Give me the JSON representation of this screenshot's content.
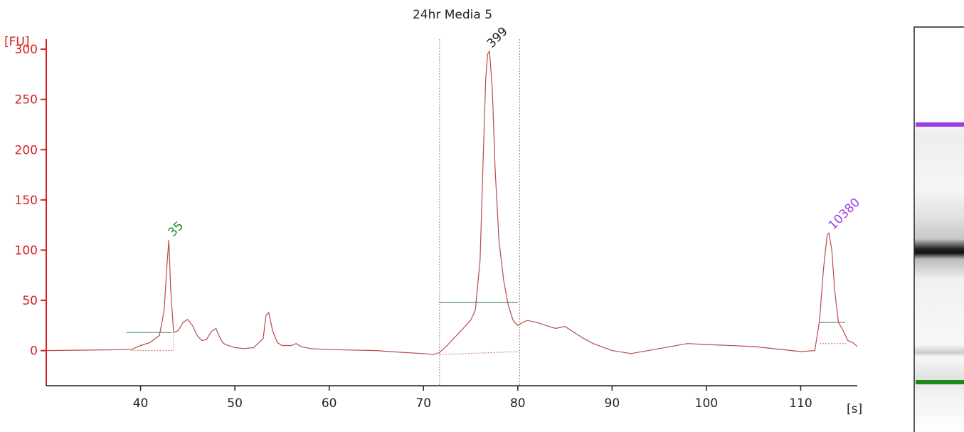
{
  "chart_data": {
    "type": "line",
    "title": "24hr Media 5",
    "xlabel": "[s]",
    "ylabel": "[FU]",
    "xlim": [
      30,
      116
    ],
    "ylim": [
      -35,
      310
    ],
    "x_ticks": [
      40,
      50,
      60,
      70,
      80,
      90,
      100,
      110
    ],
    "y_ticks": [
      0,
      50,
      100,
      150,
      200,
      250,
      300
    ],
    "grid": false,
    "series": [
      {
        "x": [
          30,
          39,
          40,
          41,
          42,
          42.5,
          42.8,
          43.0,
          43.2,
          43.5,
          44,
          44.5,
          45,
          45.5,
          46,
          46.5,
          47,
          47.5,
          48,
          48.3,
          48.7,
          49,
          50,
          51,
          52,
          53,
          53.3,
          53.6,
          54,
          54.5,
          55,
          56,
          56.5,
          57,
          58,
          60,
          65,
          68,
          70,
          71,
          71.7,
          72.5,
          73,
          74,
          75,
          75.5,
          76,
          76.3,
          76.6,
          76.8,
          77,
          77.3,
          77.6,
          78,
          78.5,
          79,
          79.5,
          80,
          80.5,
          81,
          82,
          83,
          84,
          85,
          86,
          87,
          88,
          90,
          92,
          95,
          98,
          100,
          105,
          110,
          111.5,
          112,
          112.4,
          112.8,
          113,
          113.3,
          113.6,
          114,
          114.5,
          115,
          115.5,
          116
        ],
        "y": [
          0,
          1,
          5,
          8,
          15,
          40,
          85,
          110,
          60,
          18,
          20,
          28,
          31,
          25,
          15,
          10,
          11,
          19,
          22,
          15,
          8,
          6,
          3,
          2,
          3,
          12,
          35,
          38,
          20,
          8,
          5,
          5,
          7,
          4,
          2,
          1,
          0,
          -2,
          -3,
          -4,
          -2,
          5,
          10,
          20,
          30,
          40,
          90,
          180,
          270,
          295,
          298,
          260,
          180,
          110,
          70,
          45,
          30,
          25,
          28,
          30,
          28,
          25,
          22,
          24,
          18,
          12,
          7,
          0,
          -3,
          2,
          7,
          6,
          4,
          -1,
          0,
          30,
          80,
          115,
          117,
          100,
          60,
          28,
          20,
          10,
          8,
          4
        ]
      }
    ],
    "peaks": [
      {
        "label": "35",
        "x": 43.0,
        "y": 110,
        "color": "#1e8a1e"
      },
      {
        "label": "399",
        "x": 76.8,
        "y": 298,
        "color": "#222222"
      },
      {
        "label": "10380",
        "x": 113.0,
        "y": 117,
        "color": "#9a3ee8"
      }
    ],
    "colors": {
      "axis": "#d42020",
      "trace": "#b84a4a",
      "baseline": "#4f8c6e",
      "region": "#c47070",
      "lower_marker": "#1e8a1e",
      "upper_marker": "#9a3ee8"
    }
  }
}
